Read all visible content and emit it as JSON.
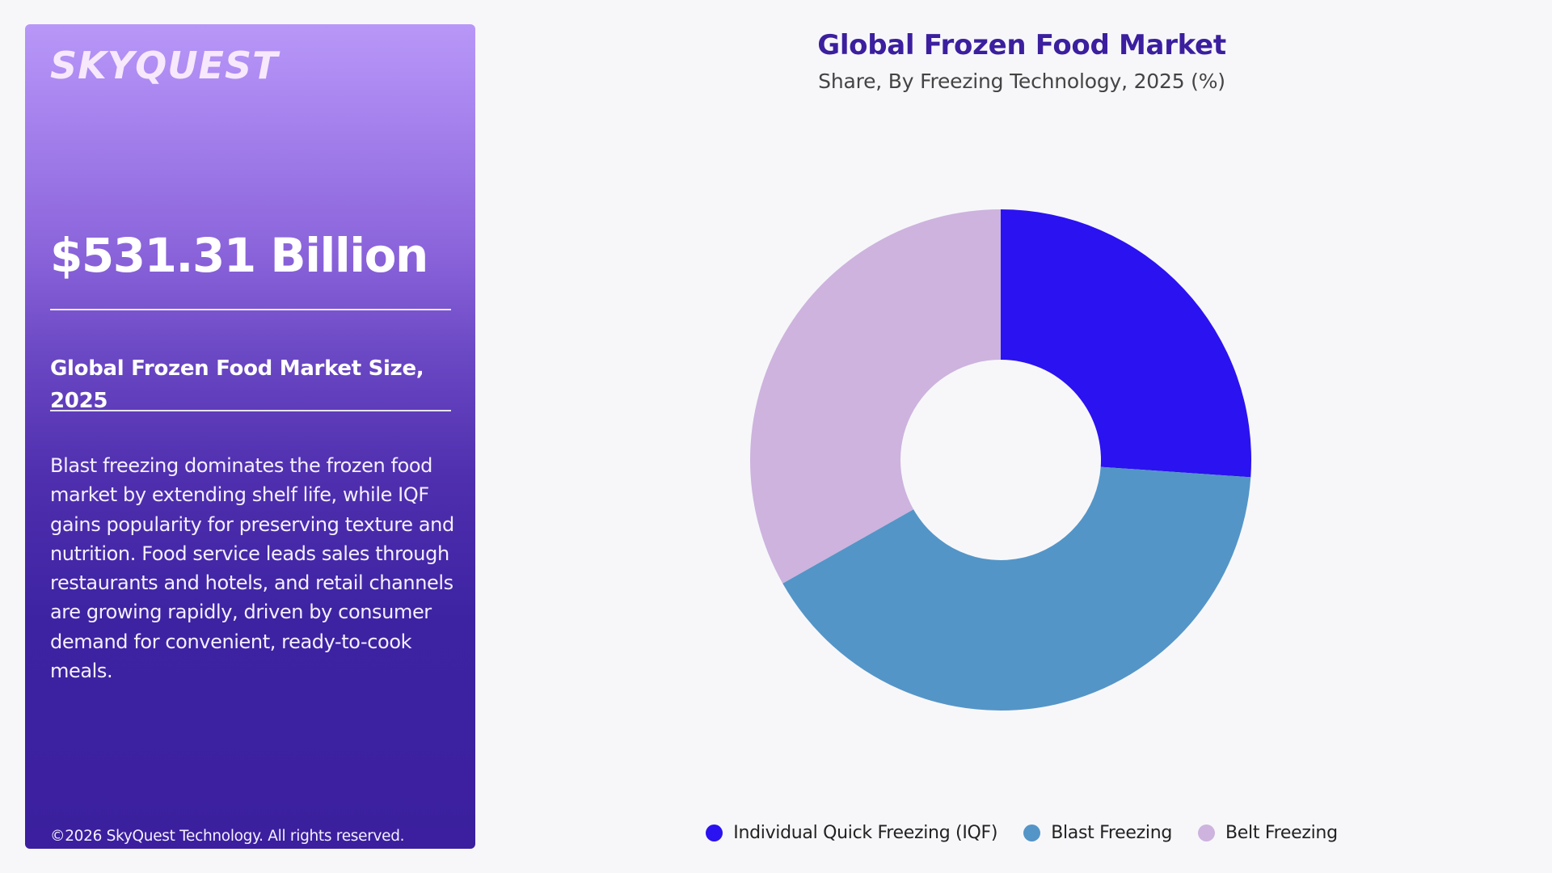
{
  "side_panel": {
    "logo": "SKYQUEST",
    "metric_value": "$531.31 Billion",
    "metric_label": "Global Frozen Food Market Size, 2025",
    "description": "Blast freezing dominates the frozen food market by extending shelf life, while IQF gains popularity for preserving texture and nutrition. Food service leads sales through restaurants and hotels, and retail channels are growing rapidly, driven by consumer demand for convenient, ready-to-cook meals.",
    "copyright": "©2026 SkyQuest Technology. All rights reserved.",
    "gradient_top": "#b897f8",
    "gradient_bottom": "#3b1f9e"
  },
  "chart": {
    "title": "Global Frozen Food Market",
    "subtitle": "Share, By Freezing Technology, 2025 (%)"
  },
  "legend": [
    {
      "label": "Individual Quick Freezing (IQF)",
      "color": "#2b12f0"
    },
    {
      "label": "Blast Freezing",
      "color": "#5495c7"
    },
    {
      "label": "Belt Freezing",
      "color": "#cdb3de"
    }
  ],
  "chart_data": {
    "type": "pie",
    "subtype": "donut",
    "title": "Global Frozen Food Market",
    "subtitle": "Share, By Freezing Technology, 2025 (%)",
    "categories": [
      "Individual Quick Freezing (IQF)",
      "Blast Freezing",
      "Belt Freezing"
    ],
    "values": [
      26.1,
      40.7,
      33.2
    ],
    "colors": [
      "#2b12f0",
      "#5495c7",
      "#cdb3de"
    ],
    "start_angle": "12 o'clock, clockwise",
    "data_labels": false,
    "legend_position": "bottom"
  }
}
